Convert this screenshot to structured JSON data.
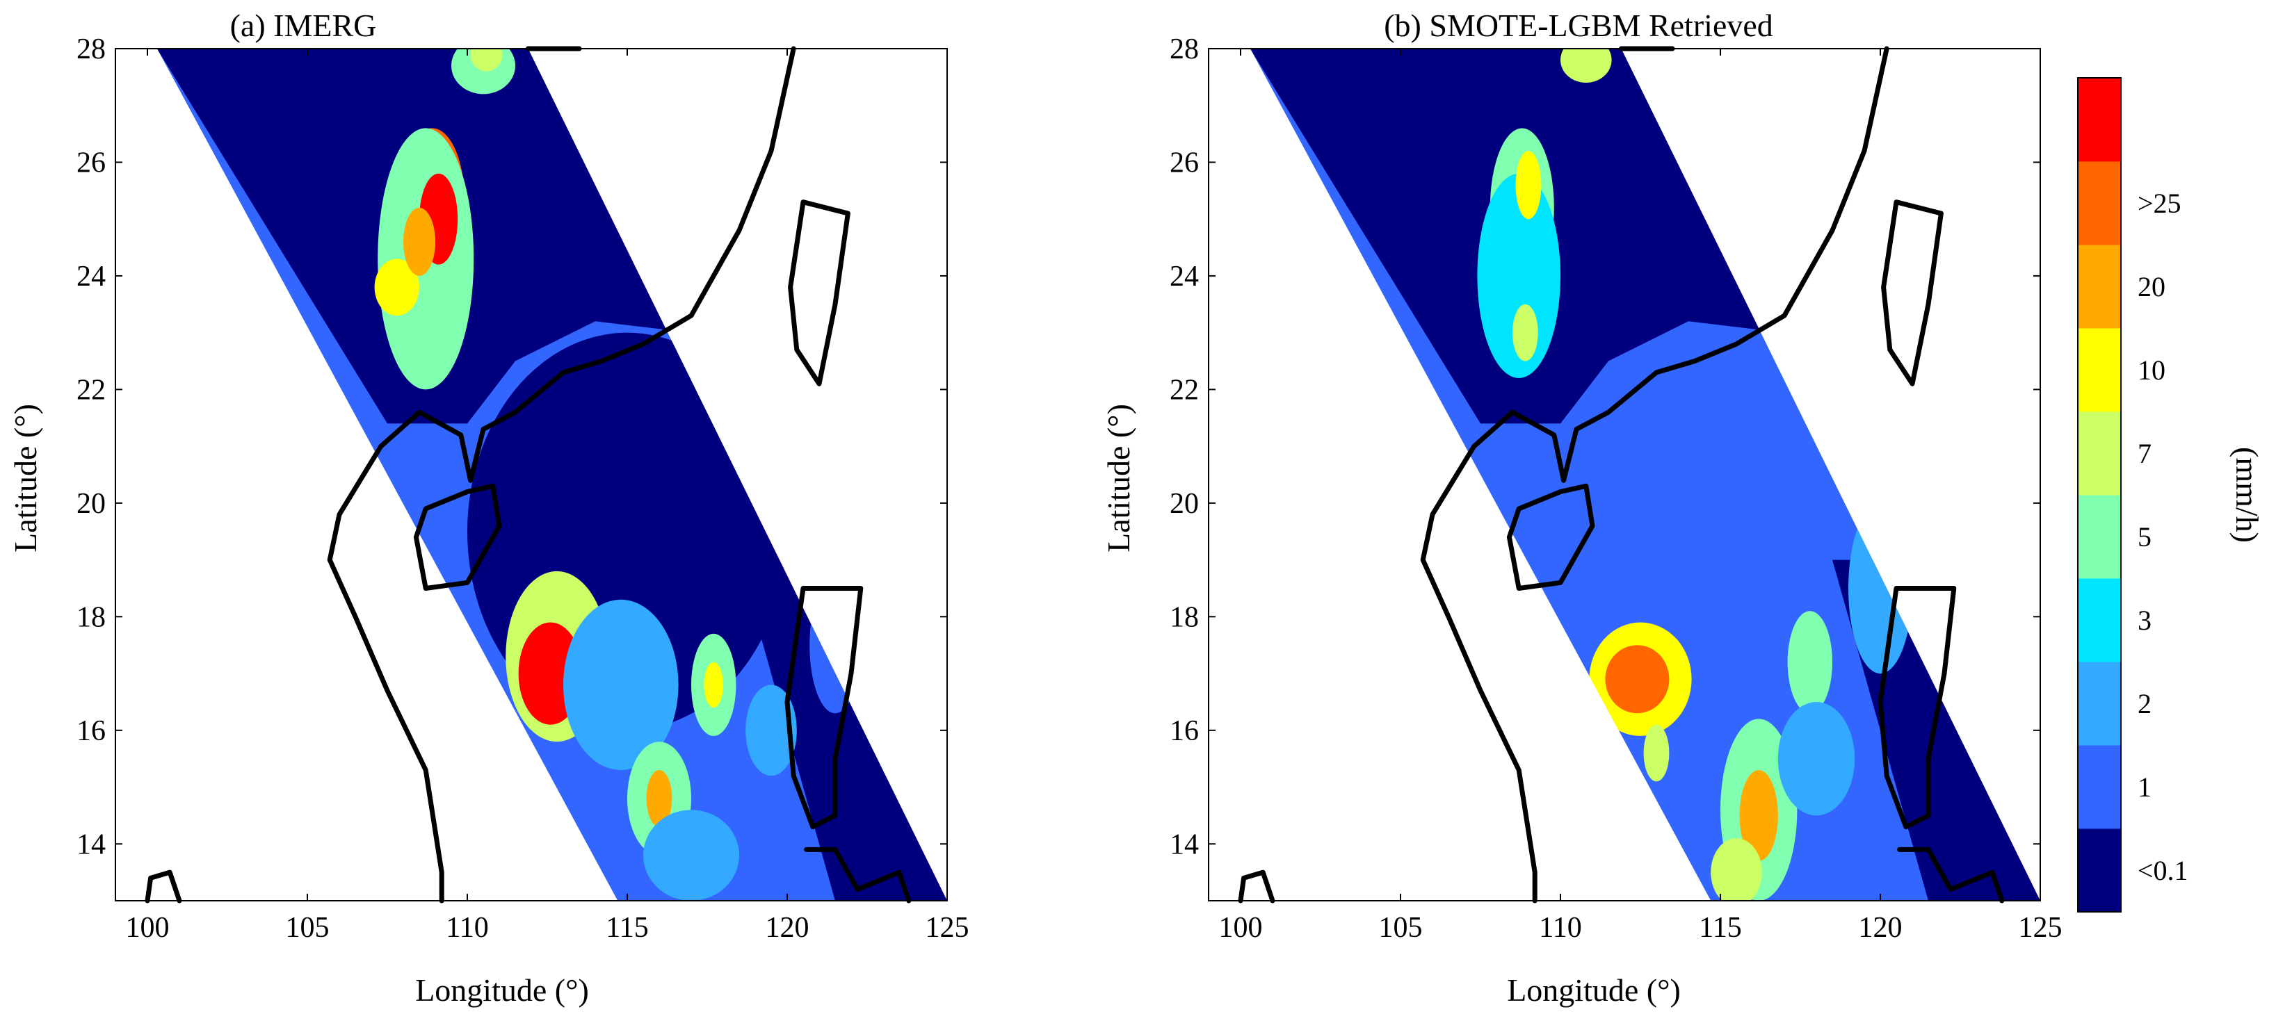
{
  "panels": [
    {
      "id": "imerg",
      "title": "(a) IMERG",
      "xlabel": "Longitude (°)",
      "ylabel": "Latitude (°)",
      "rain_cells": [
        {
          "lon": 108.9,
          "lat": 25.4,
          "rx": 1.0,
          "ry": 1.2,
          "lvl": 9
        },
        {
          "lon": 108.7,
          "lat": 24.3,
          "rx": 1.5,
          "ry": 2.3,
          "lvl": 5
        },
        {
          "lon": 109.1,
          "lat": 25.0,
          "rx": 0.6,
          "ry": 0.8,
          "lvl": 10
        },
        {
          "lon": 107.8,
          "lat": 23.8,
          "rx": 0.7,
          "ry": 0.5,
          "lvl": 7
        },
        {
          "lon": 108.5,
          "lat": 24.6,
          "rx": 0.5,
          "ry": 0.6,
          "lvl": 8
        },
        {
          "lon": 110.5,
          "lat": 27.7,
          "rx": 1.0,
          "ry": 0.5,
          "lvl": 5
        },
        {
          "lon": 110.6,
          "lat": 27.9,
          "rx": 0.5,
          "ry": 0.3,
          "lvl": 6
        },
        {
          "lon": 115.0,
          "lat": 19.5,
          "rx": 5.0,
          "ry": 3.5,
          "lvl": 1
        },
        {
          "lon": 112.8,
          "lat": 17.3,
          "rx": 1.6,
          "ry": 1.5,
          "lvl": 6
        },
        {
          "lon": 112.6,
          "lat": 17.0,
          "rx": 1.0,
          "ry": 0.9,
          "lvl": 10
        },
        {
          "lon": 114.8,
          "lat": 16.8,
          "rx": 1.8,
          "ry": 1.5,
          "lvl": 3
        },
        {
          "lon": 116.0,
          "lat": 14.8,
          "rx": 1.0,
          "ry": 1.0,
          "lvl": 5
        },
        {
          "lon": 116.0,
          "lat": 14.8,
          "rx": 0.4,
          "ry": 0.5,
          "lvl": 8
        },
        {
          "lon": 117.7,
          "lat": 16.8,
          "rx": 0.7,
          "ry": 0.9,
          "lvl": 5
        },
        {
          "lon": 117.7,
          "lat": 16.8,
          "rx": 0.3,
          "ry": 0.4,
          "lvl": 7
        },
        {
          "lon": 117.0,
          "lat": 13.8,
          "rx": 1.5,
          "ry": 0.8,
          "lvl": 3
        },
        {
          "lon": 119.5,
          "lat": 16.0,
          "rx": 0.8,
          "ry": 0.8,
          "lvl": 3
        },
        {
          "lon": 121.5,
          "lat": 17.5,
          "rx": 0.8,
          "ry": 1.2,
          "lvl": 2
        }
      ]
    },
    {
      "id": "smote",
      "title": "(b) SMOTE-LGBM Retrieved",
      "xlabel": "Longitude (°)",
      "ylabel": "Latitude (°)",
      "rain_cells": [
        {
          "lon": 108.8,
          "lat": 25.2,
          "rx": 1.0,
          "ry": 1.4,
          "lvl": 5
        },
        {
          "lon": 108.7,
          "lat": 24.0,
          "rx": 1.3,
          "ry": 1.8,
          "lvl": 4
        },
        {
          "lon": 109.0,
          "lat": 25.6,
          "rx": 0.4,
          "ry": 0.6,
          "lvl": 7
        },
        {
          "lon": 108.9,
          "lat": 23.0,
          "rx": 0.4,
          "ry": 0.5,
          "lvl": 6
        },
        {
          "lon": 110.8,
          "lat": 27.8,
          "rx": 0.8,
          "ry": 0.4,
          "lvl": 6
        },
        {
          "lon": 114.5,
          "lat": 18.5,
          "rx": 4.0,
          "ry": 3.0,
          "lvl": 2
        },
        {
          "lon": 112.5,
          "lat": 16.9,
          "rx": 1.6,
          "ry": 1.0,
          "lvl": 7
        },
        {
          "lon": 112.4,
          "lat": 16.9,
          "rx": 1.0,
          "ry": 0.6,
          "lvl": 9
        },
        {
          "lon": 113.0,
          "lat": 15.6,
          "rx": 0.4,
          "ry": 0.5,
          "lvl": 6
        },
        {
          "lon": 116.2,
          "lat": 14.6,
          "rx": 1.2,
          "ry": 1.6,
          "lvl": 5
        },
        {
          "lon": 116.2,
          "lat": 14.5,
          "rx": 0.6,
          "ry": 0.8,
          "lvl": 8
        },
        {
          "lon": 117.8,
          "lat": 17.2,
          "rx": 0.7,
          "ry": 0.9,
          "lvl": 5
        },
        {
          "lon": 118.0,
          "lat": 15.5,
          "rx": 1.2,
          "ry": 1.0,
          "lvl": 3
        },
        {
          "lon": 115.5,
          "lat": 13.5,
          "rx": 0.8,
          "ry": 0.6,
          "lvl": 6
        },
        {
          "lon": 120.0,
          "lat": 18.5,
          "rx": 1.0,
          "ry": 1.5,
          "lvl": 3
        }
      ]
    }
  ],
  "map": {
    "lon_range": [
      99,
      125
    ],
    "lat_range": [
      13,
      28
    ],
    "xticks": [
      100,
      105,
      110,
      115,
      120,
      125
    ],
    "yticks": [
      14,
      16,
      18,
      20,
      22,
      24,
      26,
      28
    ],
    "swath": [
      [
        100.3,
        28
      ],
      [
        111.9,
        28
      ],
      [
        125,
        13
      ],
      [
        114.7,
        13
      ]
    ],
    "swath_dry_polygon": [
      [
        100.3,
        28
      ],
      [
        111.9,
        28
      ],
      [
        117.0,
        23.0
      ],
      [
        114.0,
        23.2
      ],
      [
        111.5,
        22.5
      ],
      [
        110.0,
        21.4
      ],
      [
        107.5,
        21.4
      ]
    ],
    "swath_dry_strip": [
      [
        118.5,
        19.0
      ],
      [
        120.5,
        19.0
      ],
      [
        125,
        13
      ],
      [
        121.5,
        13
      ]
    ],
    "coastline": [
      [
        [
          111.9,
          28.0
        ],
        [
          113.5,
          28.0
        ]
      ],
      [
        [
          120.2,
          28.0
        ],
        [
          119.5,
          26.2
        ],
        [
          118.5,
          24.8
        ],
        [
          117.0,
          23.3
        ],
        [
          115.5,
          22.8
        ],
        [
          114.2,
          22.5
        ],
        [
          113.0,
          22.3
        ],
        [
          111.5,
          21.6
        ],
        [
          110.5,
          21.3
        ],
        [
          110.1,
          20.4
        ],
        [
          109.8,
          21.2
        ],
        [
          108.5,
          21.6
        ],
        [
          107.3,
          21.0
        ],
        [
          106.0,
          19.8
        ],
        [
          105.7,
          19.0
        ],
        [
          106.5,
          18.0
        ],
        [
          107.5,
          16.7
        ],
        [
          108.7,
          15.3
        ],
        [
          109.2,
          13.5
        ],
        [
          109.2,
          13.0
        ]
      ],
      [
        [
          108.7,
          18.5
        ],
        [
          110.0,
          18.6
        ],
        [
          111.0,
          19.6
        ],
        [
          110.8,
          20.3
        ],
        [
          110.0,
          20.2
        ],
        [
          108.7,
          19.9
        ],
        [
          108.4,
          19.4
        ],
        [
          108.7,
          18.5
        ]
      ],
      [
        [
          120.5,
          25.3
        ],
        [
          121.9,
          25.1
        ],
        [
          121.5,
          23.5
        ],
        [
          121.0,
          22.1
        ],
        [
          120.3,
          22.7
        ],
        [
          120.1,
          23.8
        ],
        [
          120.5,
          25.3
        ]
      ],
      [
        [
          120.5,
          18.5
        ],
        [
          122.3,
          18.5
        ],
        [
          122.0,
          17.0
        ],
        [
          121.5,
          15.5
        ],
        [
          121.5,
          14.5
        ],
        [
          120.8,
          14.3
        ],
        [
          120.2,
          15.2
        ],
        [
          120.0,
          16.5
        ],
        [
          120.5,
          18.5
        ]
      ],
      [
        [
          120.6,
          13.9
        ],
        [
          121.5,
          13.9
        ],
        [
          122.2,
          13.2
        ],
        [
          123.5,
          13.5
        ],
        [
          123.8,
          13.0
        ]
      ],
      [
        [
          100.0,
          13.0
        ],
        [
          100.1,
          13.4
        ],
        [
          100.7,
          13.5
        ],
        [
          101.0,
          13.0
        ]
      ]
    ]
  },
  "colorbar": {
    "label": "(mm/h)",
    "colors": [
      "#00007f",
      "#3366ff",
      "#33aaff",
      "#00e5ff",
      "#80ffb0",
      "#ccff66",
      "#ffff00",
      "#ffaa00",
      "#ff6600",
      "#ff0000"
    ],
    "tick_labels": [
      "<0.1",
      "1",
      "2",
      "3",
      "5",
      "7",
      "10",
      "20",
      ">25"
    ]
  }
}
